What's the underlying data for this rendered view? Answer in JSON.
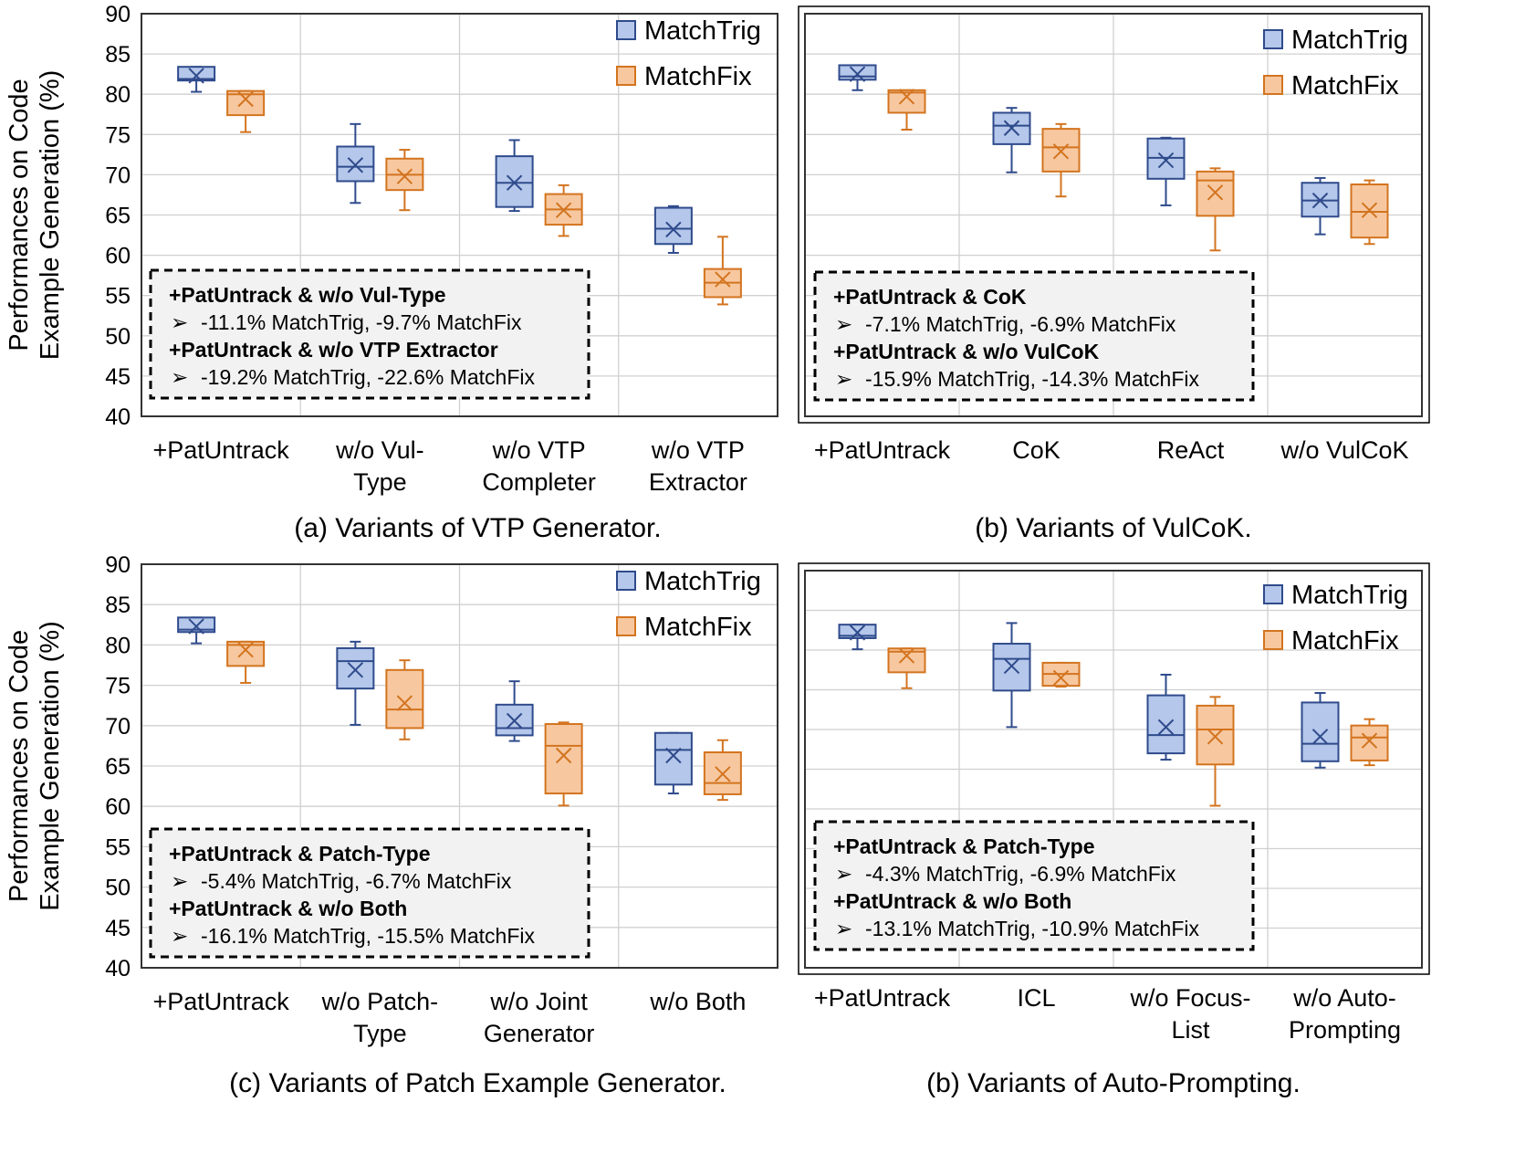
{
  "ylabel_lines": [
    "Performances on Code",
    "Example Generation (%)"
  ],
  "colors": {
    "MatchTrig": {
      "stroke": "#2f4b8c",
      "fill": "#b5c7ea"
    },
    "MatchFix": {
      "stroke": "#d3741f",
      "fill": "#f7c8a0"
    },
    "grid": "#d0d0d0"
  },
  "chart_data": [
    {
      "type": "box",
      "caption": "(a) Variants of VTP Generator.",
      "yticks": [
        "90",
        "85",
        "80",
        "75",
        "70",
        "65",
        "60",
        "55",
        "50",
        "45",
        "40"
      ],
      "ylim": [
        40,
        90
      ],
      "grid": true,
      "legend_position": "top-right",
      "categories": [
        [
          "+PatUntrack"
        ],
        [
          "w/o Vul-",
          "Type"
        ],
        [
          "w/o VTP",
          "Completer"
        ],
        [
          "w/o VTP",
          "Extractor"
        ]
      ],
      "series": [
        {
          "name": "MatchTrig",
          "boxes": [
            {
              "min": 80.3,
              "q1": 81.7,
              "median": 81.9,
              "q3": 83.4,
              "max": 83.4,
              "mean": 82.3
            },
            {
              "min": 66.5,
              "q1": 69.2,
              "median": 71.0,
              "q3": 73.5,
              "max": 76.3,
              "mean": 71.2
            },
            {
              "min": 65.5,
              "q1": 66.0,
              "median": 69.0,
              "q3": 72.3,
              "max": 74.3,
              "mean": 69.0
            },
            {
              "min": 60.3,
              "q1": 61.4,
              "median": 63.3,
              "q3": 65.9,
              "max": 66.1,
              "mean": 63.2
            }
          ]
        },
        {
          "name": "MatchFix",
          "boxes": [
            {
              "min": 75.3,
              "q1": 77.4,
              "median": 80.0,
              "q3": 80.4,
              "max": 80.4,
              "mean": 79.4
            },
            {
              "min": 65.6,
              "q1": 68.1,
              "median": 70.0,
              "q3": 72.0,
              "max": 73.1,
              "mean": 69.8
            },
            {
              "min": 62.4,
              "q1": 63.8,
              "median": 65.7,
              "q3": 67.6,
              "max": 68.7,
              "mean": 65.6
            },
            {
              "min": 53.9,
              "q1": 54.8,
              "median": 56.6,
              "q3": 58.3,
              "max": 62.3,
              "mean": 57.0
            }
          ]
        }
      ],
      "annotation": {
        "lines": [
          {
            "text": "+PatUntrack & w/o Vul-Type",
            "bold": true
          },
          {
            "text": "-11.1% MatchTrig, -9.7% MatchFix",
            "bullet": "➢"
          },
          {
            "text": "+PatUntrack & w/o VTP Extractor",
            "bold": true
          },
          {
            "text": "-19.2% MatchTrig, -22.6% MatchFix",
            "bullet": "➢"
          }
        ]
      }
    },
    {
      "type": "box",
      "caption": "(b) Variants of VulCoK.",
      "yticks": [],
      "ylim": [
        40,
        90
      ],
      "grid": true,
      "legend_position": "top-right",
      "categories": [
        [
          "+PatUntrack"
        ],
        [
          "CoK"
        ],
        [
          "ReAct"
        ],
        [
          "w/o VulCoK"
        ]
      ],
      "series": [
        {
          "name": "MatchTrig",
          "boxes": [
            {
              "min": 80.5,
              "q1": 81.8,
              "median": 82.2,
              "q3": 83.6,
              "max": 83.6,
              "mean": 82.5
            },
            {
              "min": 70.3,
              "q1": 73.8,
              "median": 76.1,
              "q3": 77.7,
              "max": 78.3,
              "mean": 75.8
            },
            {
              "min": 66.2,
              "q1": 69.5,
              "median": 72.1,
              "q3": 74.5,
              "max": 74.6,
              "mean": 71.8
            },
            {
              "min": 62.6,
              "q1": 64.8,
              "median": 66.8,
              "q3": 69.0,
              "max": 69.6,
              "mean": 66.8
            }
          ]
        },
        {
          "name": "MatchFix",
          "boxes": [
            {
              "min": 75.6,
              "q1": 77.7,
              "median": 80.2,
              "q3": 80.5,
              "max": 80.5,
              "mean": 79.7
            },
            {
              "min": 67.3,
              "q1": 70.4,
              "median": 73.4,
              "q3": 75.7,
              "max": 76.3,
              "mean": 72.9
            },
            {
              "min": 60.6,
              "q1": 64.9,
              "median": 69.3,
              "q3": 70.4,
              "max": 70.8,
              "mean": 67.8
            },
            {
              "min": 61.4,
              "q1": 62.2,
              "median": 65.4,
              "q3": 68.8,
              "max": 69.3,
              "mean": 65.6
            }
          ]
        }
      ],
      "annotation": {
        "lines": [
          {
            "text": "+PatUntrack & CoK",
            "bold": true
          },
          {
            "text": "-7.1% MatchTrig, -6.9% MatchFix",
            "bullet": "➢"
          },
          {
            "text": "+PatUntrack & w/o VulCoK",
            "bold": true
          },
          {
            "text": "-15.9% MatchTrig, -14.3% MatchFix",
            "bullet": "➢"
          }
        ]
      }
    },
    {
      "type": "box",
      "caption": "(c) Variants of Patch Example Generator.",
      "yticks": [
        "90",
        "85",
        "80",
        "75",
        "70",
        "65",
        "60",
        "55",
        "50",
        "45",
        "40"
      ],
      "ylim": [
        40,
        90
      ],
      "grid": true,
      "legend_position": "top-right",
      "categories": [
        [
          "+PatUntrack"
        ],
        [
          "w/o Patch-",
          "Type"
        ],
        [
          "w/o Joint",
          "Generator"
        ],
        [
          "w/o Both"
        ]
      ],
      "series": [
        {
          "name": "MatchTrig",
          "boxes": [
            {
              "min": 80.2,
              "q1": 81.6,
              "median": 81.9,
              "q3": 83.4,
              "max": 83.4,
              "mean": 82.3
            },
            {
              "min": 70.1,
              "q1": 74.6,
              "median": 78.0,
              "q3": 79.6,
              "max": 80.4,
              "mean": 76.9
            },
            {
              "min": 68.1,
              "q1": 68.8,
              "median": 69.7,
              "q3": 72.6,
              "max": 75.5,
              "mean": 70.6
            },
            {
              "min": 61.6,
              "q1": 62.7,
              "median": 67.0,
              "q3": 69.1,
              "max": 69.1,
              "mean": 66.3
            }
          ]
        },
        {
          "name": "MatchFix",
          "boxes": [
            {
              "min": 75.3,
              "q1": 77.4,
              "median": 80.0,
              "q3": 80.4,
              "max": 80.4,
              "mean": 79.4
            },
            {
              "min": 68.3,
              "q1": 69.7,
              "median": 72.0,
              "q3": 76.9,
              "max": 78.1,
              "mean": 72.8
            },
            {
              "min": 60.1,
              "q1": 61.6,
              "median": 67.5,
              "q3": 70.2,
              "max": 70.4,
              "mean": 66.3
            },
            {
              "min": 60.8,
              "q1": 61.5,
              "median": 62.9,
              "q3": 66.7,
              "max": 68.2,
              "mean": 64.0
            }
          ]
        }
      ],
      "annotation": {
        "lines": [
          {
            "text": "+PatUntrack & Patch-Type",
            "bold": true
          },
          {
            "text": "-5.4% MatchTrig, -6.7% MatchFix",
            "bullet": "➢"
          },
          {
            "text": "+PatUntrack & w/o Both",
            "bold": true
          },
          {
            "text": "-16.1% MatchTrig, -15.5% MatchFix",
            "bullet": "➢"
          }
        ]
      }
    },
    {
      "type": "box",
      "caption": "(b) Variants of Auto-Prompting.",
      "yticks": [],
      "ylim": [
        40,
        90
      ],
      "grid": true,
      "legend_position": "top-right",
      "categories": [
        [
          "+PatUntrack"
        ],
        [
          "ICL"
        ],
        [
          "w/o Focus-",
          "List"
        ],
        [
          "w/o Auto-",
          "Prompting"
        ]
      ],
      "series": [
        {
          "name": "MatchTrig",
          "boxes": [
            {
              "min": 80.1,
              "q1": 81.5,
              "median": 81.8,
              "q3": 83.2,
              "max": 83.2,
              "mean": 82.2
            },
            {
              "min": 70.3,
              "q1": 74.9,
              "median": 78.9,
              "q3": 80.8,
              "max": 83.4,
              "mean": 78.0
            },
            {
              "min": 66.2,
              "q1": 67.0,
              "median": 69.3,
              "q3": 74.3,
              "max": 76.9,
              "mean": 70.3
            },
            {
              "min": 65.2,
              "q1": 66.0,
              "median": 68.2,
              "q3": 73.4,
              "max": 74.6,
              "mean": 69.1
            }
          ]
        },
        {
          "name": "MatchFix",
          "boxes": [
            {
              "min": 75.2,
              "q1": 77.2,
              "median": 79.8,
              "q3": 80.2,
              "max": 80.2,
              "mean": 79.3
            },
            {
              "min": 75.4,
              "q1": 75.5,
              "median": 77.0,
              "q3": 78.4,
              "max": 78.4,
              "mean": 76.5
            },
            {
              "min": 60.4,
              "q1": 65.6,
              "median": 70.0,
              "q3": 73.0,
              "max": 74.1,
              "mean": 69.1
            },
            {
              "min": 65.5,
              "q1": 66.1,
              "median": 69.0,
              "q3": 70.5,
              "max": 71.3,
              "mean": 68.6
            }
          ]
        }
      ],
      "annotation": {
        "lines": [
          {
            "text": "+PatUntrack & Patch-Type",
            "bold": true
          },
          {
            "text": "-4.3% MatchTrig, -6.9% MatchFix",
            "bullet": "➢"
          },
          {
            "text": "+PatUntrack & w/o Both",
            "bold": true
          },
          {
            "text": "-13.1% MatchTrig, -10.9% MatchFix",
            "bullet": "➢"
          }
        ]
      }
    }
  ]
}
